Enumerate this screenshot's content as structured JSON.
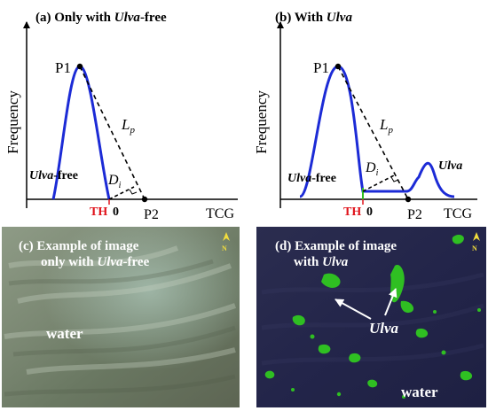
{
  "panel_a": {
    "title_prefix": "(a) Only with ",
    "title_italic": "Ulva",
    "title_suffix": "-free",
    "y_axis_label": "Frequency",
    "x_axis_label": "TCG",
    "peak_label": "P1",
    "lp_main": "L",
    "lp_sub": "p",
    "di_main": "D",
    "di_sub": "i",
    "curve_label_italic": "Ulva",
    "curve_label_suffix": "-free",
    "th_label": "TH",
    "zero_label": "0",
    "p2_label": "P2"
  },
  "panel_b": {
    "title_prefix": "(b) With ",
    "title_italic": "Ulva",
    "y_axis_label": "Frequency",
    "x_axis_label": "TCG",
    "peak_label": "P1",
    "lp_main": "L",
    "lp_sub": "p",
    "di_main": "D",
    "di_sub": "i",
    "curve_label_italic": "Ulva",
    "curve_label_suffix": "-free",
    "ulva_label": "Ulva",
    "th_label": "TH",
    "zero_label": "0",
    "p2_label": "P2"
  },
  "panel_c": {
    "title_line1": "(c) Example of image",
    "title_line2_prefix": "only with ",
    "title_line2_italic": "Ulva",
    "title_line2_suffix": "-free",
    "water_label": "water",
    "north_label": "N"
  },
  "panel_d": {
    "title_line1": "(d) Example of image",
    "title_line2_prefix": "with ",
    "title_line2_italic": "Ulva",
    "ulva_label": "Ulva",
    "water_label": "water",
    "north_label": "N"
  },
  "colors": {
    "curve": "#1c2bd6",
    "th": "#e0141c",
    "axis": "#000000",
    "north_arrow": "#f2dd3c",
    "ulva_patch": "#2fbf22",
    "water_c_base": "#6d7a64",
    "water_d_base": "#26284a"
  }
}
